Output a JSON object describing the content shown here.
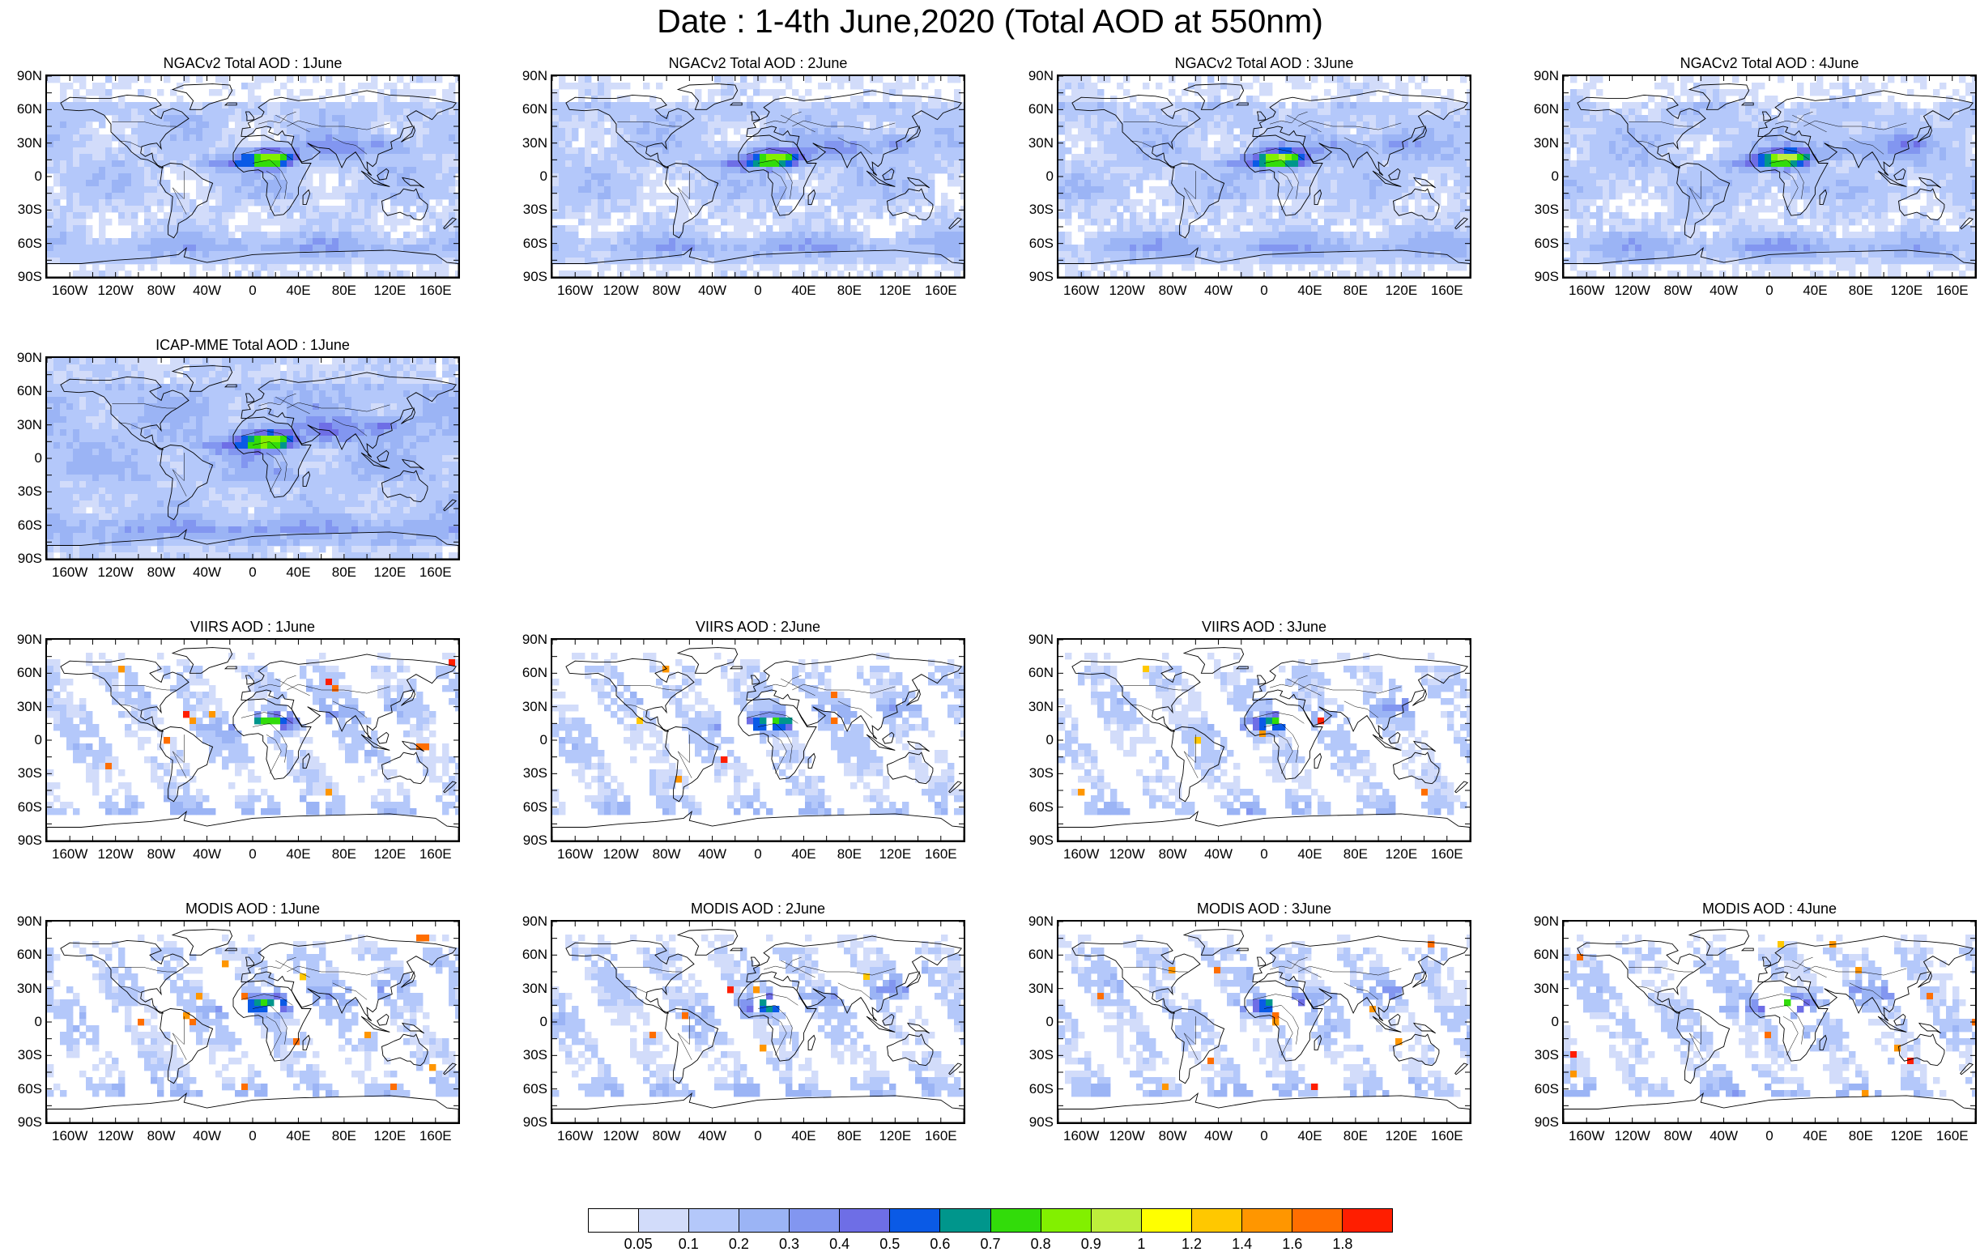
{
  "title": "Date : 1-4th June,2020 (Total AOD at 550nm)",
  "lat_ticks": [
    "90N",
    "60N",
    "30N",
    "0",
    "30S",
    "60S",
    "90S"
  ],
  "lon_ticks": [
    "160W",
    "120W",
    "80W",
    "40W",
    "0",
    "40E",
    "80E",
    "120E",
    "160E"
  ],
  "panels": [
    {
      "title": "NGACv2 Total AOD : 1June",
      "row": 0,
      "col": 0,
      "kind": "model",
      "seed": 11
    },
    {
      "title": "NGACv2 Total AOD : 2June",
      "row": 0,
      "col": 1,
      "kind": "model",
      "seed": 12
    },
    {
      "title": "NGACv2 Total AOD : 3June",
      "row": 0,
      "col": 2,
      "kind": "model",
      "seed": 13
    },
    {
      "title": "NGACv2 Total AOD : 4June",
      "row": 0,
      "col": 3,
      "kind": "model",
      "seed": 14
    },
    {
      "title": "ICAP-MME Total AOD : 1June",
      "row": 1,
      "col": 0,
      "kind": "ensemble",
      "seed": 21
    },
    {
      "title": "VIIRS AOD : 1June",
      "row": 2,
      "col": 0,
      "kind": "satellite",
      "seed": 31
    },
    {
      "title": "VIIRS AOD : 2June",
      "row": 2,
      "col": 1,
      "kind": "satellite",
      "seed": 32
    },
    {
      "title": "VIIRS AOD : 3June",
      "row": 2,
      "col": 2,
      "kind": "satellite",
      "seed": 33
    },
    {
      "title": "MODIS AOD : 1June",
      "row": 3,
      "col": 0,
      "kind": "satellite",
      "seed": 41
    },
    {
      "title": "MODIS AOD : 2June",
      "row": 3,
      "col": 1,
      "kind": "satellite",
      "seed": 42
    },
    {
      "title": "MODIS AOD : 3June",
      "row": 3,
      "col": 2,
      "kind": "satellite",
      "seed": 43
    },
    {
      "title": "MODIS AOD : 4June",
      "row": 3,
      "col": 3,
      "kind": "satellite",
      "seed": 44
    }
  ],
  "colorbar": {
    "labels": [
      "0.05",
      "0.1",
      "0.2",
      "0.3",
      "0.4",
      "0.5",
      "0.6",
      "0.7",
      "0.8",
      "0.9",
      "1",
      "1.2",
      "1.4",
      "1.6",
      "1.8"
    ],
    "colors": [
      "#ffffff",
      "#d2dcfa",
      "#b4c8fa",
      "#9bb4f5",
      "#8296f0",
      "#6e6ee6",
      "#0a5ae6",
      "#00968c",
      "#32dc0a",
      "#82f000",
      "#beee3c",
      "#ffff00",
      "#ffc800",
      "#ff9600",
      "#ff6e00",
      "#ff1e00"
    ]
  }
}
